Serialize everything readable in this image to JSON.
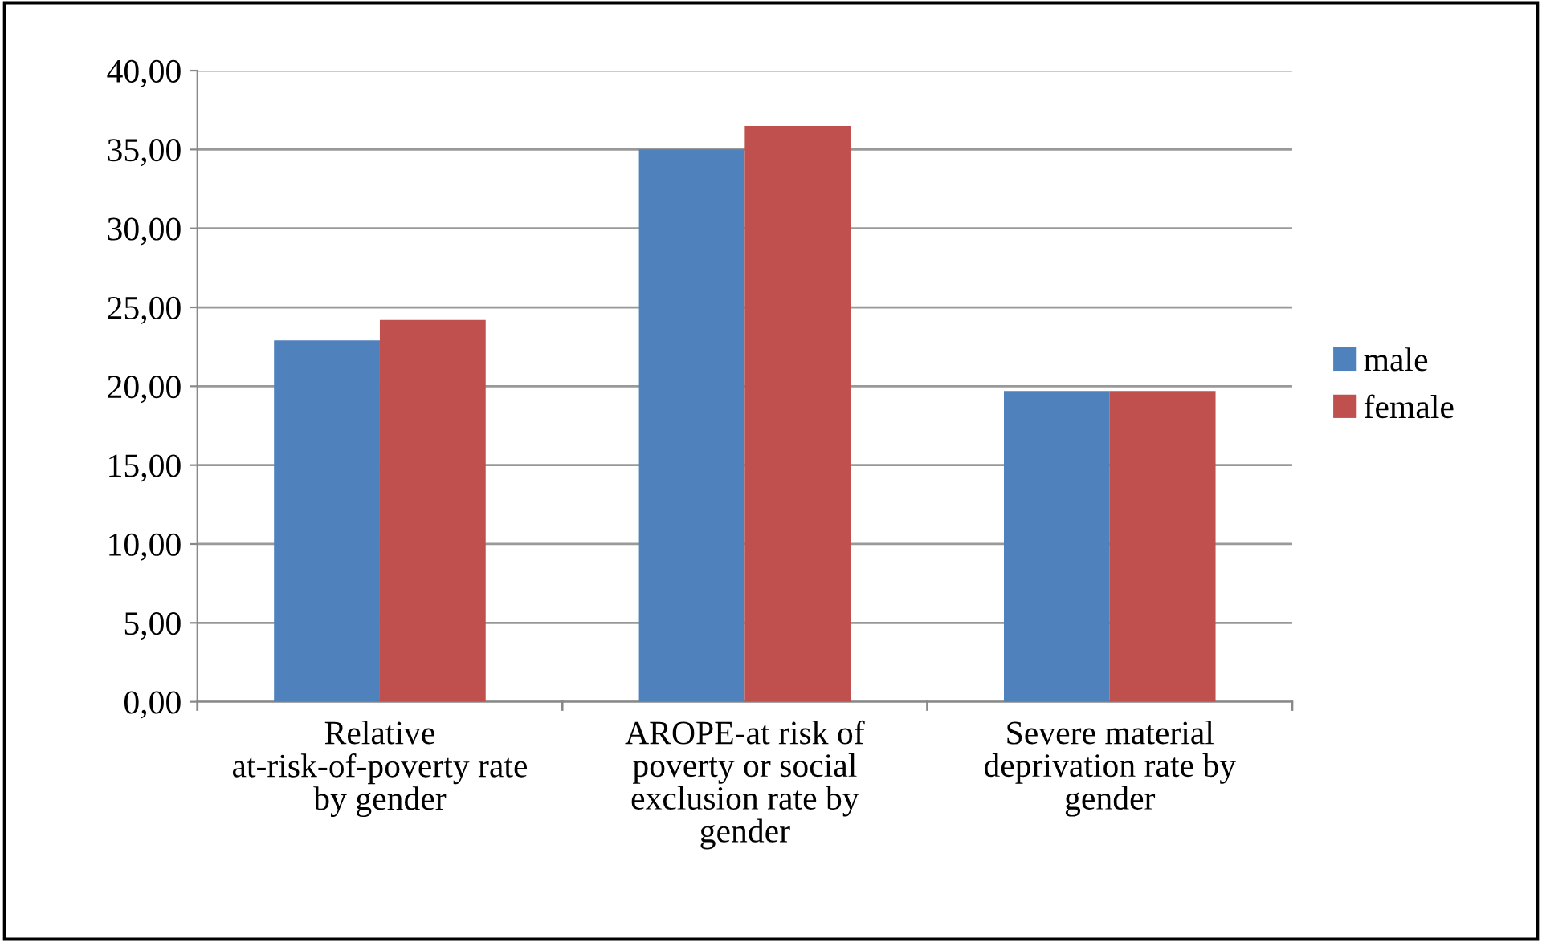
{
  "chart_data": {
    "type": "bar",
    "categories": [
      "Relative at-risk-of-poverty rate by gender",
      "AROPE-at risk of poverty or social exclusion rate by gender",
      "Severe material deprivation rate by gender"
    ],
    "series": [
      {
        "name": "male",
        "color": "#4f81bd",
        "values": [
          22.9,
          35.0,
          19.7
        ]
      },
      {
        "name": "female",
        "color": "#c0504d",
        "values": [
          24.2,
          36.5,
          19.7
        ]
      }
    ],
    "ylim": [
      0,
      40
    ],
    "yticks": [
      {
        "value": 0,
        "label": "0,00"
      },
      {
        "value": 5,
        "label": "5,00"
      },
      {
        "value": 10,
        "label": "10,00"
      },
      {
        "value": 15,
        "label": "15,00"
      },
      {
        "value": 20,
        "label": "20,00"
      },
      {
        "value": 25,
        "label": "25,00"
      },
      {
        "value": 30,
        "label": "30,00"
      },
      {
        "value": 35,
        "label": "35,00"
      },
      {
        "value": 40,
        "label": "40,00"
      }
    ],
    "grid": "y",
    "legend": "right"
  }
}
